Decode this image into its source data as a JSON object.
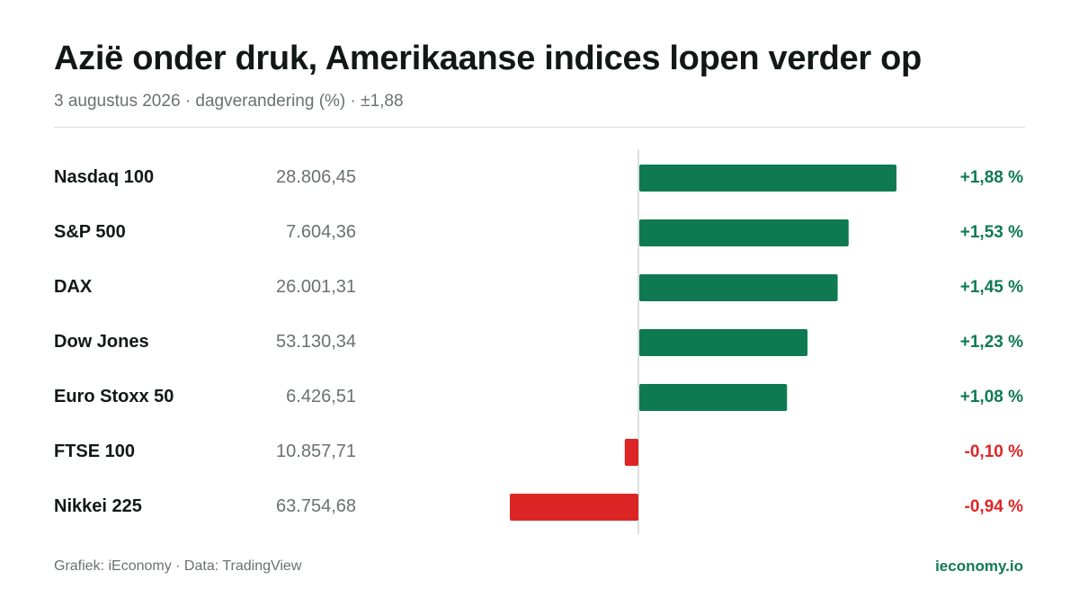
{
  "title": "Azië onder druk, Amerikaanse indices lopen verder op",
  "subtitle": "3 augustus 2026 · dagverandering (%) · ±1,88",
  "footer": {
    "source": "Grafiek: iEconomy · Data: TradingView",
    "brand": "ieconomy.io"
  },
  "colors": {
    "positive": "#0f7a52",
    "negative": "#dc2626",
    "axis": "#d1d5d3"
  },
  "chart_data": {
    "type": "bar",
    "orientation": "horizontal",
    "scale_max_abs": 1.88,
    "categories": [
      "Nasdaq 100",
      "S&P 500",
      "DAX",
      "Dow Jones",
      "Euro Stoxx 50",
      "FTSE 100",
      "Nikkei 225"
    ],
    "index_levels": [
      "28.806,45",
      "7.604,36",
      "26.001,31",
      "53.130,34",
      "6.426,51",
      "10.857,71",
      "63.754,68"
    ],
    "values": [
      1.88,
      1.53,
      1.45,
      1.23,
      1.08,
      -0.1,
      -0.94
    ],
    "value_labels": [
      "+1,88 %",
      "+1,53 %",
      "+1,45 %",
      "+1,23 %",
      "+1,08 %",
      "-0,10 %",
      "-0,94 %"
    ]
  }
}
